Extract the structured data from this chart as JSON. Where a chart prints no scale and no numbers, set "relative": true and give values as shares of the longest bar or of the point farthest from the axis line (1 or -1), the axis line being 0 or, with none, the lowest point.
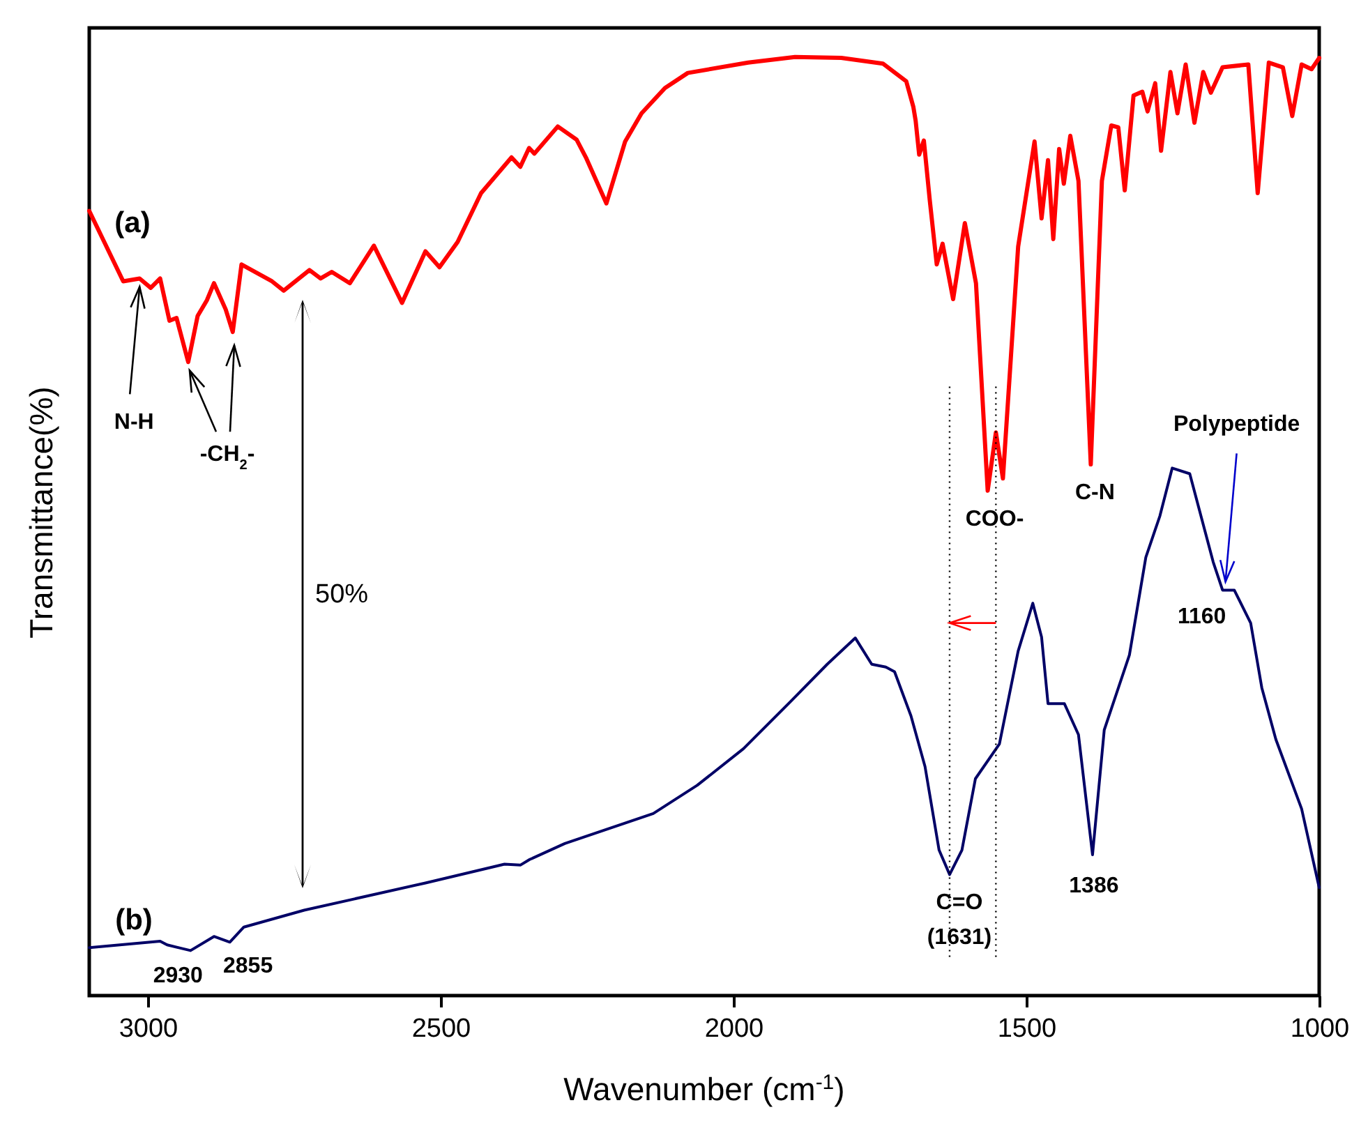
{
  "chart_data": {
    "type": "line",
    "relative": true,
    "xlabel": "Wavenumber (cm$^{-1}$)",
    "ylabel": "Transmittance(%)",
    "xlim": [
      3100,
      1000
    ],
    "xticks": [
      3000,
      2500,
      2000,
      1500,
      1000
    ],
    "grid": false,
    "marker": "none",
    "line_style": "solid",
    "series": [
      {
        "name": "(a)",
        "color": "#ff0000",
        "x": [
          3100,
          3042,
          3014,
          2995,
          2979,
          2963,
          2951,
          2931,
          2915,
          2899,
          2887,
          2867,
          2855,
          2840,
          2788,
          2768,
          2724,
          2705,
          2686,
          2655,
          2614,
          2566,
          2526,
          2502,
          2471,
          2431,
          2379,
          2364,
          2349,
          2340,
          2300,
          2268,
          2252,
          2217,
          2185,
          2157,
          2117,
          2078,
          1975,
          1895,
          1816,
          1745,
          1705,
          1693,
          1689,
          1683,
          1675,
          1665,
          1653,
          1643,
          1625,
          1605,
          1586,
          1566,
          1552,
          1540,
          1514,
          1486,
          1474,
          1463,
          1454,
          1444,
          1436,
          1425,
          1411,
          1390,
          1371,
          1355,
          1343,
          1332,
          1317,
          1302,
          1293,
          1280,
          1270,
          1254,
          1242,
          1228,
          1213,
          1198,
          1185,
          1165,
          1121,
          1105,
          1086,
          1062,
          1046,
          1030,
          1013,
          1000
        ],
        "values": [
          0.836,
          0.761,
          0.764,
          0.754,
          0.764,
          0.719,
          0.722,
          0.675,
          0.724,
          0.741,
          0.759,
          0.731,
          0.707,
          0.779,
          0.761,
          0.751,
          0.773,
          0.764,
          0.771,
          0.759,
          0.799,
          0.738,
          0.793,
          0.776,
          0.803,
          0.855,
          0.893,
          0.883,
          0.903,
          0.897,
          0.926,
          0.912,
          0.893,
          0.844,
          0.91,
          0.94,
          0.967,
          0.983,
          0.994,
          1.0,
          0.999,
          0.993,
          0.974,
          0.947,
          0.932,
          0.896,
          0.911,
          0.848,
          0.779,
          0.801,
          0.742,
          0.823,
          0.759,
          0.538,
          0.6,
          0.551,
          0.798,
          0.91,
          0.828,
          0.89,
          0.806,
          0.902,
          0.865,
          0.916,
          0.868,
          0.566,
          0.868,
          0.927,
          0.925,
          0.858,
          0.959,
          0.963,
          0.942,
          0.972,
          0.9,
          0.984,
          0.94,
          0.992,
          0.93,
          0.984,
          0.962,
          0.989,
          0.992,
          0.855,
          0.994,
          0.989,
          0.937,
          0.992,
          0.987,
          0.999
        ]
      },
      {
        "name": "(b)",
        "color": "#000066",
        "x": [
          3100,
          2979,
          2967,
          2927,
          2887,
          2860,
          2836,
          2733,
          2526,
          2391,
          2364,
          2348,
          2288,
          2137,
          2062,
          1983,
          1903,
          1840,
          1792,
          1764,
          1740,
          1725,
          1697,
          1673,
          1649,
          1631,
          1610,
          1587,
          1546,
          1514,
          1489,
          1474,
          1463,
          1435,
          1411,
          1387,
          1367,
          1324,
          1296,
          1272,
          1251,
          1221,
          1181,
          1165,
          1145,
          1117,
          1098,
          1074,
          1030,
          1000
        ],
        "values": [
          0.051,
          0.058,
          0.054,
          0.048,
          0.063,
          0.057,
          0.073,
          0.091,
          0.12,
          0.14,
          0.139,
          0.145,
          0.162,
          0.194,
          0.224,
          0.263,
          0.313,
          0.353,
          0.381,
          0.353,
          0.35,
          0.345,
          0.298,
          0.244,
          0.155,
          0.129,
          0.155,
          0.231,
          0.268,
          0.367,
          0.418,
          0.382,
          0.311,
          0.311,
          0.278,
          0.15,
          0.283,
          0.363,
          0.467,
          0.511,
          0.562,
          0.556,
          0.462,
          0.432,
          0.432,
          0.397,
          0.328,
          0.273,
          0.199,
          0.115
        ]
      }
    ],
    "ref_lines": [
      {
        "axis": "x",
        "value": 1631,
        "line_style": "dotted",
        "color": "#000000"
      },
      {
        "axis": "x",
        "value": 1552,
        "line_style": "dotted",
        "color": "#000000"
      }
    ],
    "annotations": [
      {
        "text": "N-H",
        "x": 3014,
        "y": 0.764
      },
      {
        "text": "-CH$_{2}$-",
        "x": 2931,
        "y": 0.675
      },
      {
        "text": "COO-",
        "x": 1566,
        "y": 0.538
      },
      {
        "text": "C-N",
        "x": 1390,
        "y": 0.566
      },
      {
        "text": "Polypeptide",
        "x": 1160,
        "y": 0.432
      },
      {
        "text": "1160",
        "x": 1160,
        "y": 0.432
      },
      {
        "text": "C=O",
        "x": 1631,
        "y": 0.129
      },
      {
        "text": "(1631)",
        "x": 1631,
        "y": 0.129
      },
      {
        "text": "1386",
        "x": 1387,
        "y": 0.15
      },
      {
        "text": "2930",
        "x": 2927,
        "y": 0.048
      },
      {
        "text": "2855",
        "x": 2860,
        "y": 0.057
      },
      "50%"
    ]
  }
}
